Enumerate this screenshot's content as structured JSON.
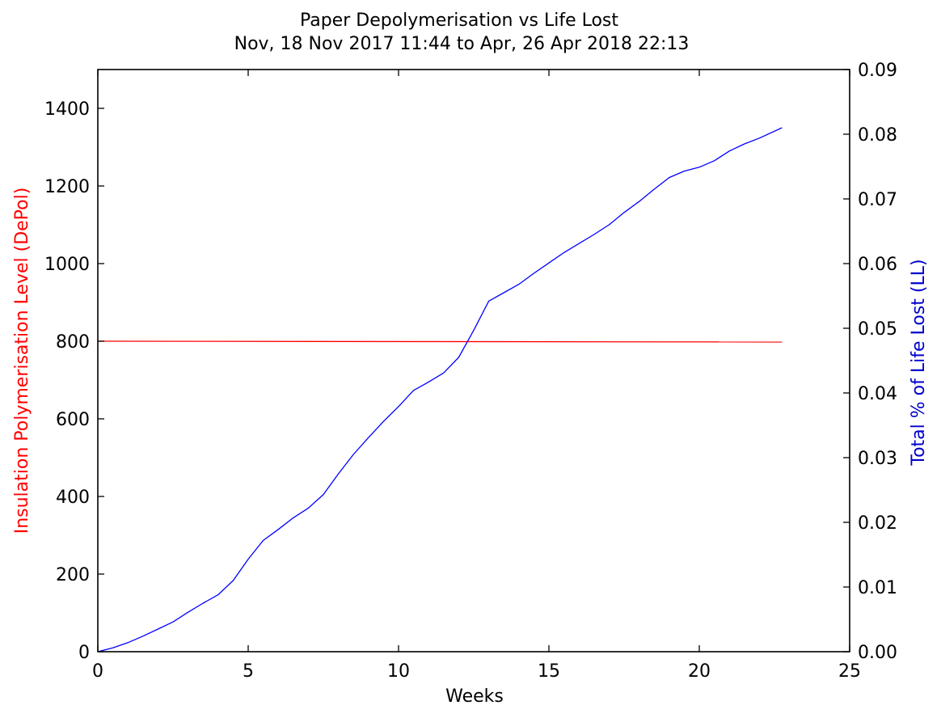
{
  "chart_data": {
    "type": "line",
    "title": "Paper Depolymerisation vs Life Lost",
    "subtitle": "Nov, 18 Nov 2017 11:44 to Apr, 26 Apr 2018 22:13",
    "xlabel": "Weeks",
    "ylabel_left": "Insulation Polymerisation Level (DePol)",
    "ylabel_right": "Total % of Life Lost (LL)",
    "xlim": [
      0,
      25
    ],
    "ylim_left": [
      0,
      1500
    ],
    "ylim_right": [
      0,
      0.09
    ],
    "x_ticks": [
      "0",
      "5",
      "10",
      "15",
      "20",
      "25"
    ],
    "y_left_ticks": [
      "0",
      "200",
      "400",
      "600",
      "800",
      "1000",
      "1200",
      "1400"
    ],
    "y_right_ticks": [
      "0.00",
      "0.01",
      "0.02",
      "0.03",
      "0.04",
      "0.05",
      "0.06",
      "0.07",
      "0.08",
      "0.09"
    ],
    "grid": false,
    "colors": {
      "depol": "#ff0000",
      "life_lost": "#0000ff",
      "left_label": "#ff0000",
      "right_label": "#0000cc",
      "axes": "#000000"
    },
    "series": [
      {
        "axis": "left",
        "x": [
          0,
          22.75
        ],
        "values": [
          800,
          798
        ]
      },
      {
        "axis": "right",
        "x": [
          0,
          0.5,
          1,
          1.5,
          2,
          2.5,
          3,
          3.5,
          4,
          4.5,
          5,
          5.5,
          6,
          6.5,
          7,
          7.5,
          8,
          8.5,
          9,
          9.5,
          10,
          10.5,
          11,
          11.5,
          12,
          12.5,
          13,
          13.5,
          14,
          14.5,
          15,
          15.5,
          16,
          16.5,
          17,
          17.5,
          18,
          18.5,
          19,
          19.5,
          20,
          20.5,
          21,
          21.5,
          22,
          22.75
        ],
        "values": [
          0,
          0.0006,
          0.0014,
          0.0024,
          0.0035,
          0.0046,
          0.0061,
          0.0075,
          0.0088,
          0.011,
          0.0143,
          0.0172,
          0.0189,
          0.0207,
          0.0222,
          0.0243,
          0.0275,
          0.0305,
          0.0331,
          0.0356,
          0.0379,
          0.0404,
          0.0417,
          0.0431,
          0.0455,
          0.0497,
          0.0542,
          0.0555,
          0.0568,
          0.0585,
          0.0601,
          0.0617,
          0.0631,
          0.0645,
          0.066,
          0.0679,
          0.0696,
          0.0715,
          0.0733,
          0.0743,
          0.0749,
          0.0759,
          0.0774,
          0.0785,
          0.0794,
          0.081
        ]
      }
    ]
  }
}
